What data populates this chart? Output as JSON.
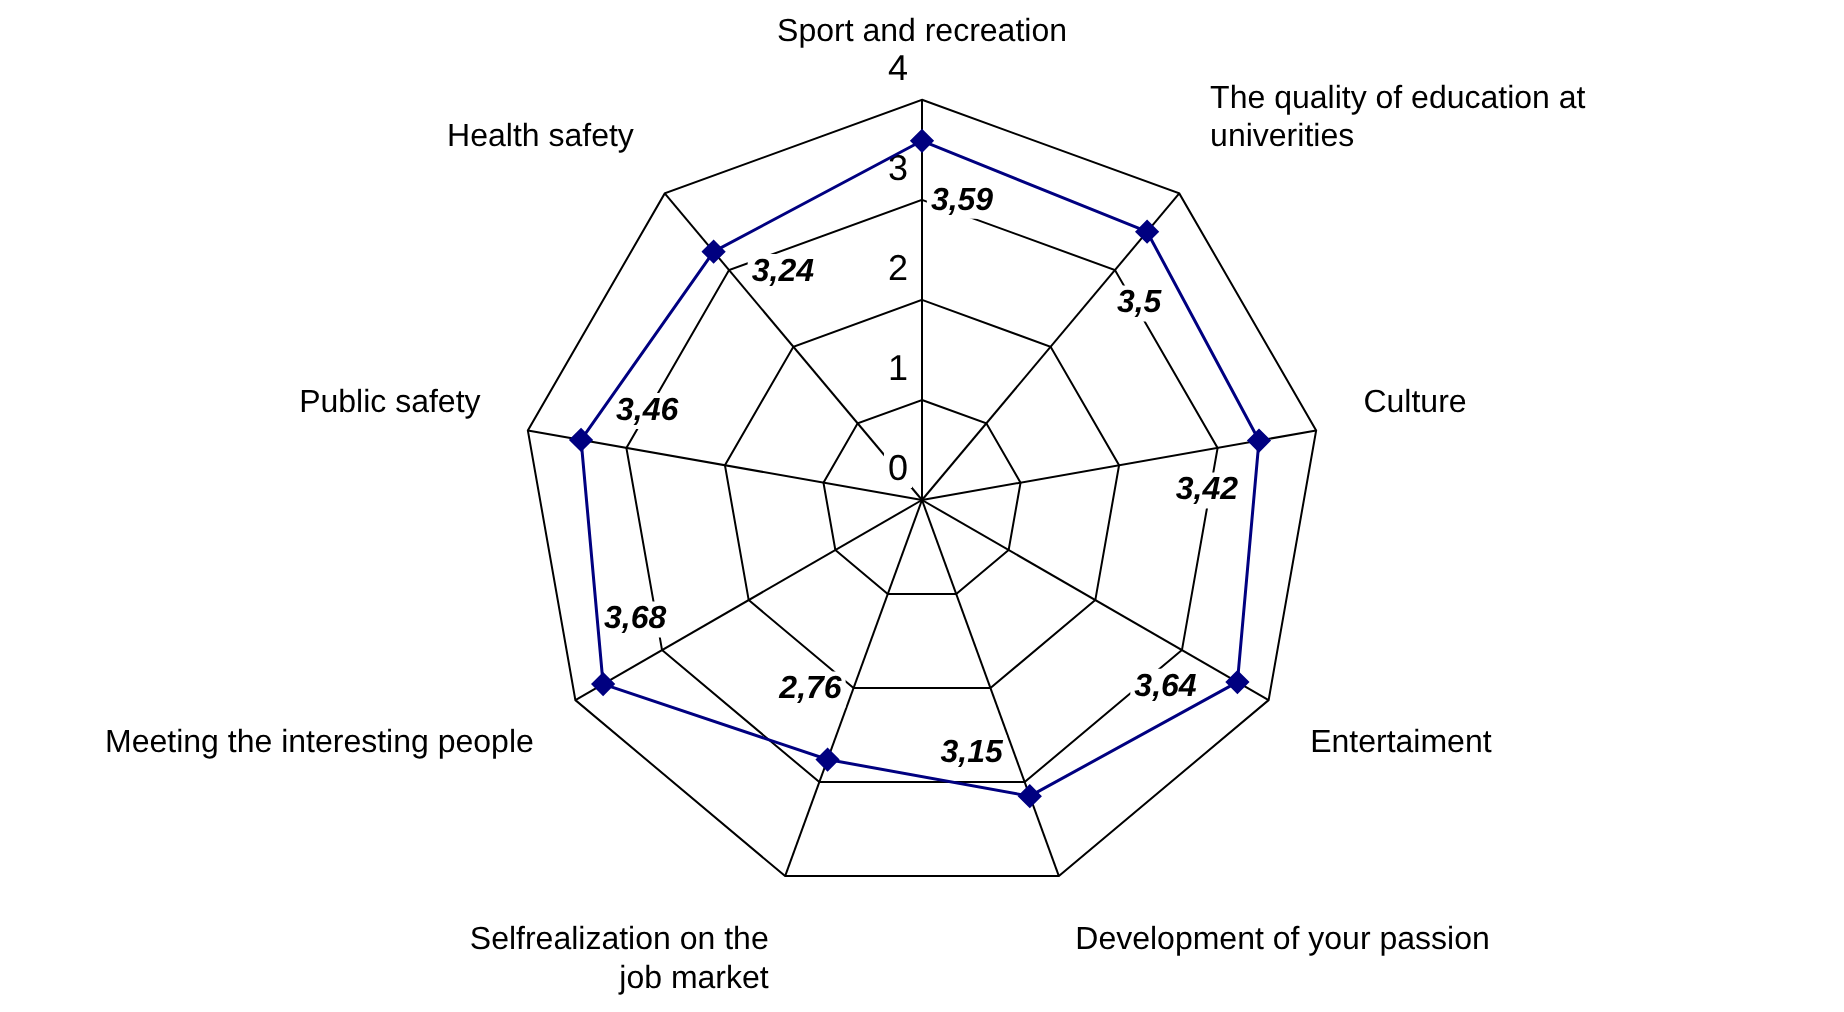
{
  "chart_data": {
    "type": "radar",
    "categories": [
      "Sport and recreation",
      "The quality of education at univerities",
      "Culture",
      "Entertaiment",
      "Development of your passion",
      "Selfrealization on the job market",
      "Meeting the interesting people",
      "Public safety",
      "Health safety"
    ],
    "series": [
      {
        "color": "#000080",
        "values": [
          3.59,
          3.5,
          3.42,
          3.64,
          3.15,
          2.76,
          3.68,
          3.46,
          3.24
        ],
        "value_labels": [
          "3,59",
          "3,5",
          "3,42",
          "3,64",
          "3,15",
          "2,76",
          "3,68",
          "3,46",
          "3,24"
        ]
      }
    ],
    "ylim": [
      0,
      4
    ],
    "yticks": [
      0,
      1,
      2,
      3,
      4
    ],
    "grid": true,
    "legend": false,
    "marker": "diamond",
    "line_style": "solid"
  }
}
